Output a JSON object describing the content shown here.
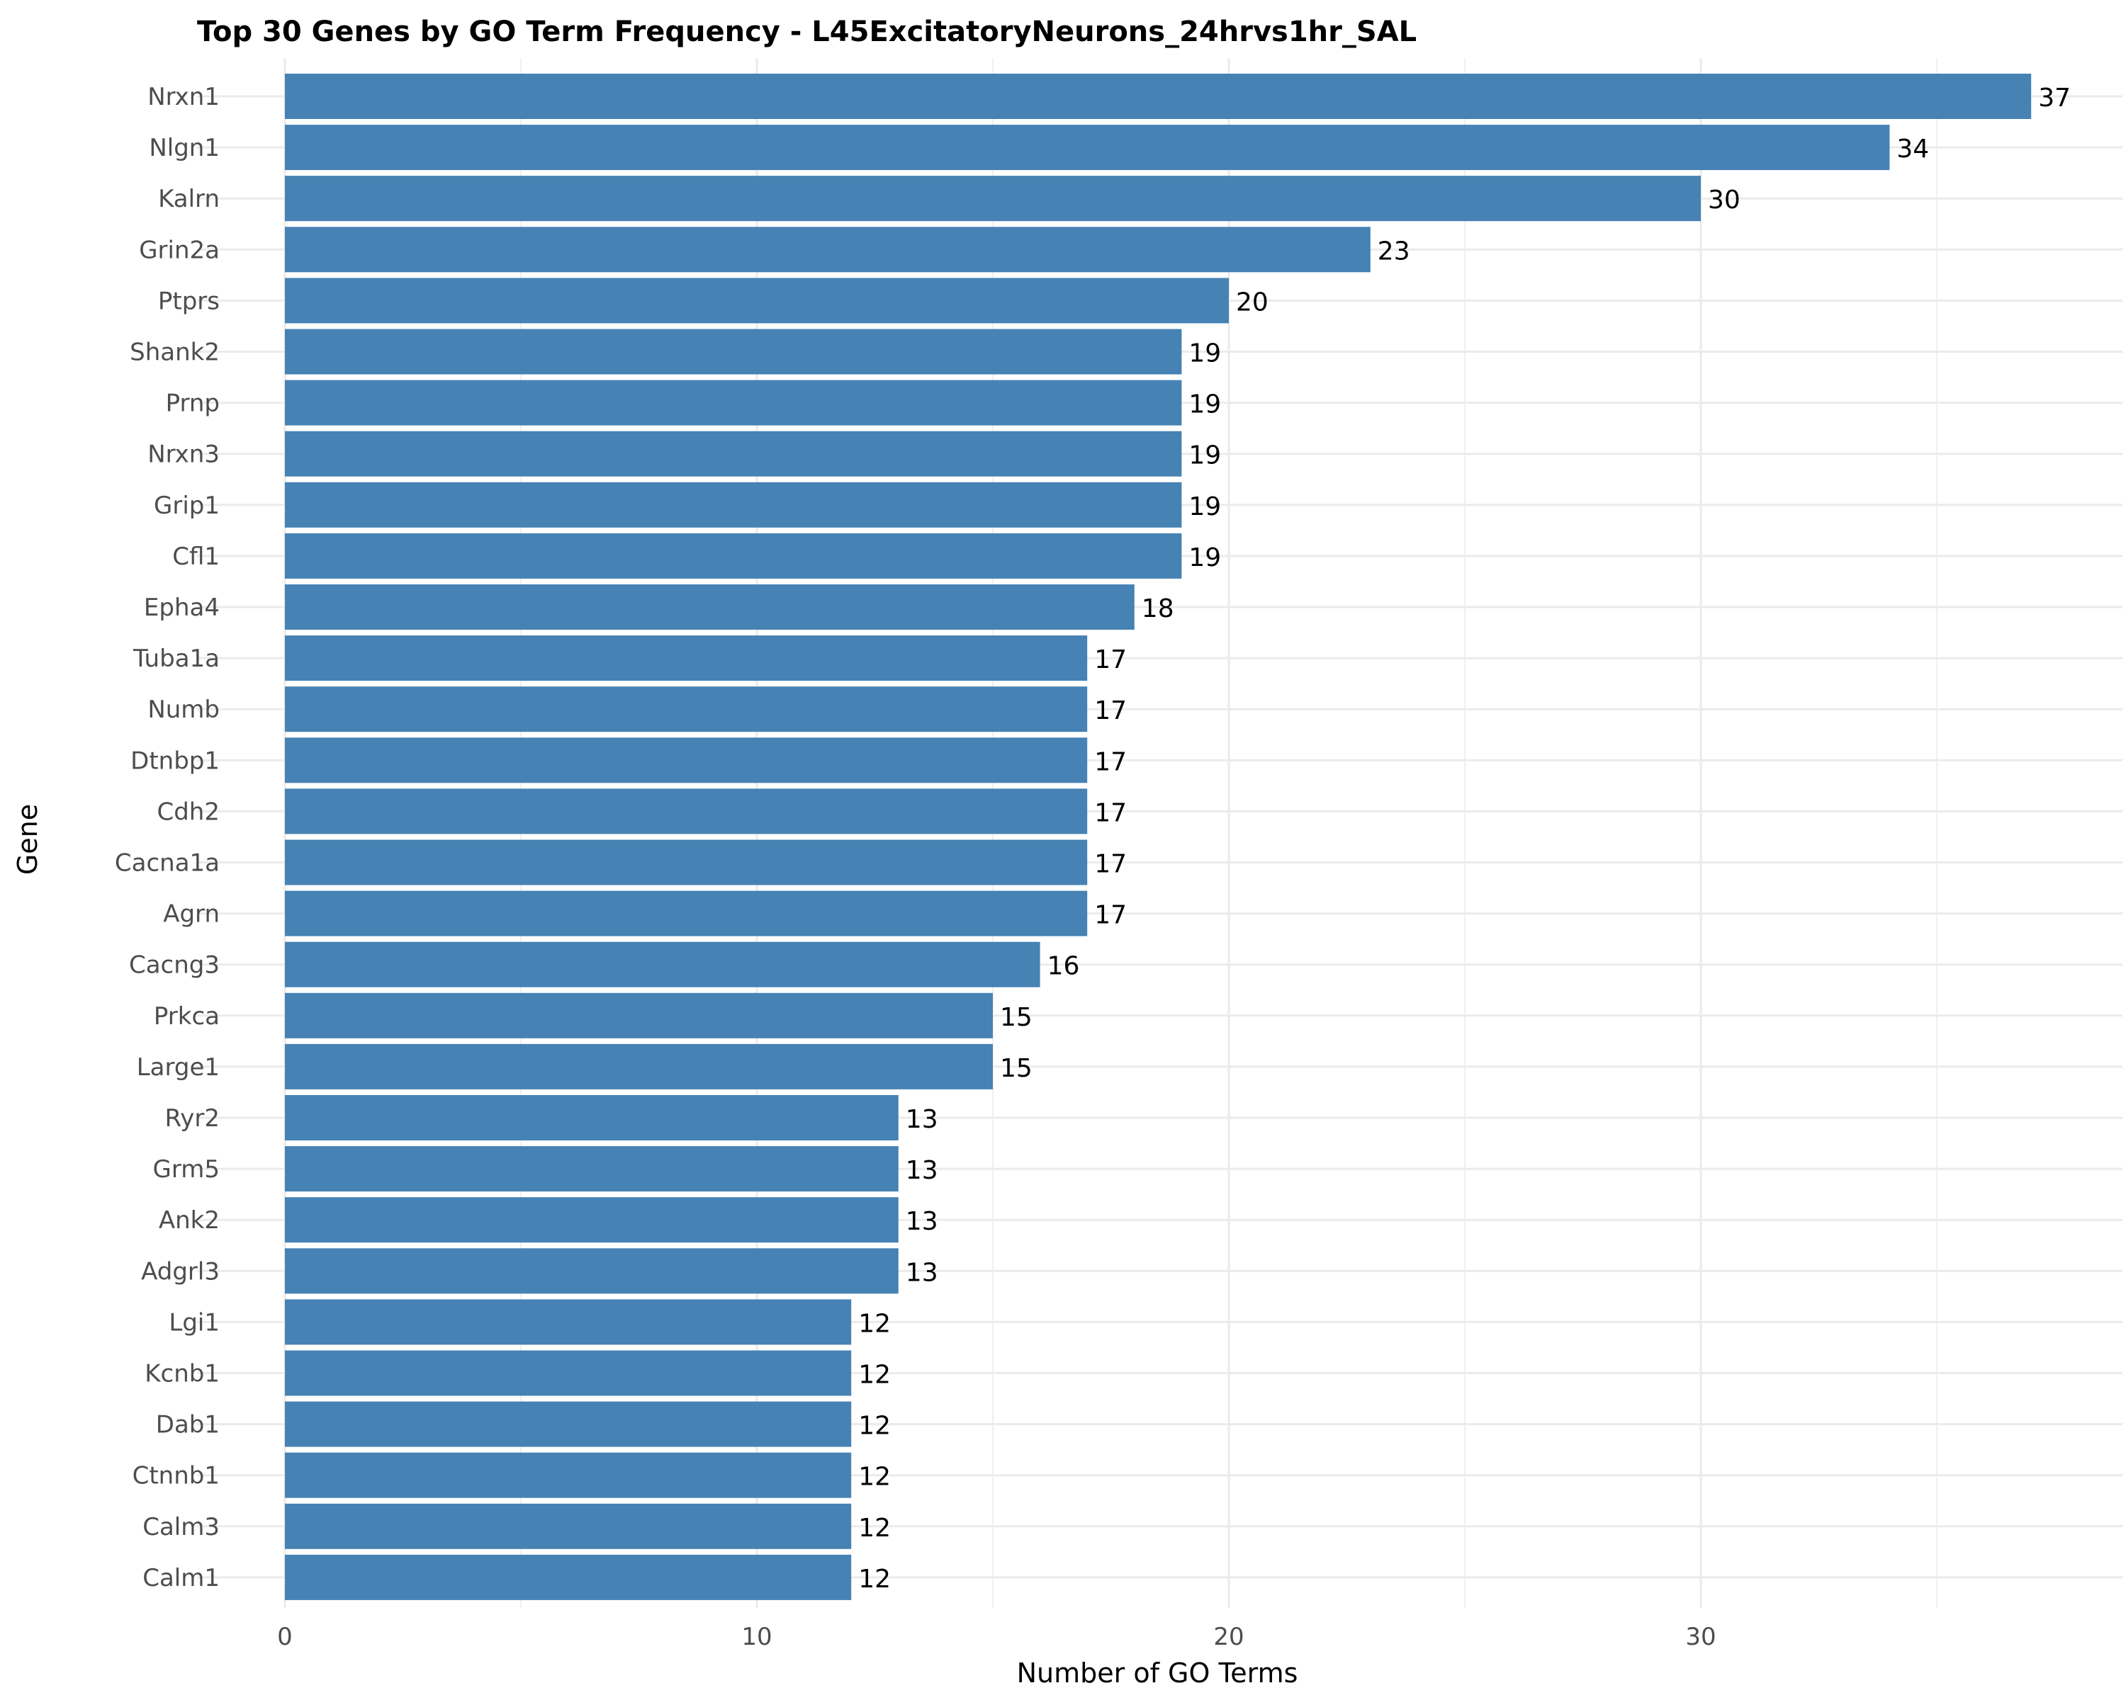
{
  "chart_data": {
    "type": "bar",
    "orientation": "horizontal",
    "title": "Top 30 Genes by GO Term Frequency - L45ExcitatoryNeurons_24hrvs1hr_SAL",
    "xlabel": "Number of GO Terms",
    "ylabel": "Gene",
    "xlim": [
      0,
      39
    ],
    "xticks": [
      0,
      10,
      20,
      30
    ],
    "grid": true,
    "bar_color": "#4682B4",
    "categories": [
      "Nrxn1",
      "Nlgn1",
      "Kalrn",
      "Grin2a",
      "Ptprs",
      "Shank2",
      "Prnp",
      "Nrxn3",
      "Grip1",
      "Cfl1",
      "Epha4",
      "Tuba1a",
      "Numb",
      "Dtnbp1",
      "Cdh2",
      "Cacna1a",
      "Agrn",
      "Cacng3",
      "Prkca",
      "Large1",
      "Ryr2",
      "Grm5",
      "Ank2",
      "Adgrl3",
      "Lgi1",
      "Kcnb1",
      "Dab1",
      "Ctnnb1",
      "Calm3",
      "Calm1"
    ],
    "values": [
      37,
      34,
      30,
      23,
      20,
      19,
      19,
      19,
      19,
      19,
      18,
      17,
      17,
      17,
      17,
      17,
      17,
      16,
      15,
      15,
      13,
      13,
      13,
      13,
      12,
      12,
      12,
      12,
      12,
      12
    ]
  }
}
